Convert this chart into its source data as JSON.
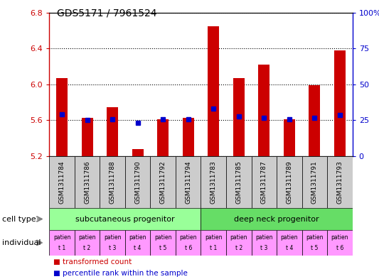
{
  "title": "GDS5171 / 7961524",
  "samples": [
    "GSM1311784",
    "GSM1311786",
    "GSM1311788",
    "GSM1311790",
    "GSM1311792",
    "GSM1311794",
    "GSM1311783",
    "GSM1311785",
    "GSM1311787",
    "GSM1311789",
    "GSM1311791",
    "GSM1311793"
  ],
  "bar_values": [
    6.07,
    5.63,
    5.75,
    5.28,
    5.61,
    5.63,
    6.65,
    6.07,
    6.22,
    5.61,
    5.99,
    6.38
  ],
  "dot_values": [
    5.67,
    5.6,
    5.61,
    5.57,
    5.61,
    5.61,
    5.73,
    5.64,
    5.63,
    5.61,
    5.63,
    5.66
  ],
  "bar_base": 5.2,
  "ylim_left": [
    5.2,
    6.8
  ],
  "ylim_right": [
    0,
    100
  ],
  "yticks_left": [
    5.2,
    5.6,
    6.0,
    6.4,
    6.8
  ],
  "yticks_right": [
    0,
    25,
    50,
    75,
    100
  ],
  "bar_color": "#cc0000",
  "dot_color": "#0000cc",
  "cell_type_groups": [
    {
      "label": "subcutaneous progenitor",
      "start": 0,
      "end": 6,
      "color": "#99ff99"
    },
    {
      "label": "deep neck progenitor",
      "start": 6,
      "end": 12,
      "color": "#66dd66"
    }
  ],
  "individual_labels_top": [
    "patien",
    "patien",
    "patien",
    "patien",
    "patien",
    "patien",
    "patien",
    "patien",
    "patien",
    "patien",
    "patien",
    "patien"
  ],
  "individual_labels_bot": [
    "t 1",
    "t 2",
    "t 3",
    "t 4",
    "t 5",
    "t 6",
    "t 1",
    "t 2",
    "t 3",
    "t 4",
    "t 5",
    "t 6"
  ],
  "individual_color": "#ff99ff",
  "cell_type_label": "cell type",
  "individual_row_label": "individual",
  "legend_bar_label": "transformed count",
  "legend_dot_label": "percentile rank within the sample",
  "left_axis_color": "#cc0000",
  "right_axis_color": "#0000cc",
  "xtick_bg_color": "#cccccc",
  "title_fontsize": 10,
  "bar_width": 0.45
}
